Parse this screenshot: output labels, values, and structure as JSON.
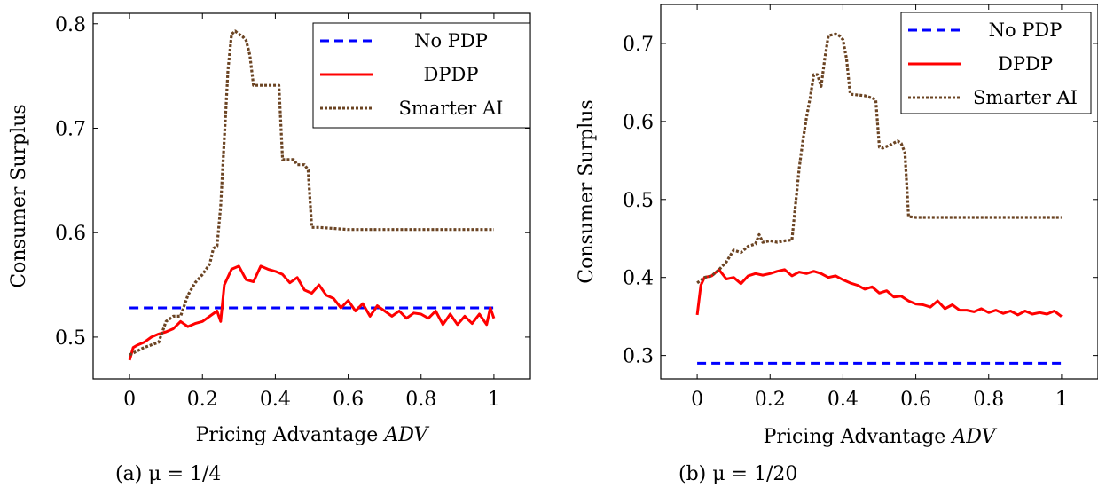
{
  "chart_data": [
    {
      "type": "line",
      "caption": "(a) μ = 1/4",
      "xlabel": "Pricing Advantage ADV",
      "ylabel": "Consumer Surplus",
      "xlim": [
        -0.1,
        1.1
      ],
      "ylim": [
        0.46,
        0.81
      ],
      "xticks": [
        0,
        0.2,
        0.4,
        0.6,
        0.8,
        1
      ],
      "xtick_labels": [
        "0",
        "0.2",
        "0.4",
        "0.6",
        "0.8",
        "1"
      ],
      "yticks": [
        0.5,
        0.6,
        0.7,
        0.8
      ],
      "ytick_labels": [
        "0.5",
        "0.6",
        "0.7",
        "0.8"
      ],
      "legend": "top-right",
      "series": [
        {
          "name": "No PDP",
          "color": "#0000ff",
          "style": "dashed",
          "x": [
            0,
            1
          ],
          "y": [
            0.528,
            0.528
          ]
        },
        {
          "name": "DPDP",
          "color": "#ff0000",
          "style": "solid",
          "x": [
            0,
            0.01,
            0.02,
            0.04,
            0.06,
            0.08,
            0.1,
            0.12,
            0.14,
            0.16,
            0.18,
            0.2,
            0.22,
            0.24,
            0.25,
            0.26,
            0.28,
            0.3,
            0.32,
            0.34,
            0.36,
            0.38,
            0.4,
            0.42,
            0.44,
            0.46,
            0.48,
            0.5,
            0.52,
            0.54,
            0.56,
            0.58,
            0.6,
            0.62,
            0.64,
            0.66,
            0.68,
            0.7,
            0.72,
            0.74,
            0.76,
            0.78,
            0.8,
            0.82,
            0.84,
            0.86,
            0.88,
            0.9,
            0.92,
            0.94,
            0.96,
            0.98,
            0.99,
            1.0
          ],
          "y": [
            0.478,
            0.49,
            0.492,
            0.495,
            0.5,
            0.503,
            0.505,
            0.508,
            0.515,
            0.51,
            0.513,
            0.515,
            0.52,
            0.525,
            0.515,
            0.55,
            0.565,
            0.568,
            0.555,
            0.553,
            0.568,
            0.565,
            0.563,
            0.56,
            0.552,
            0.557,
            0.545,
            0.542,
            0.55,
            0.54,
            0.537,
            0.528,
            0.535,
            0.525,
            0.532,
            0.52,
            0.53,
            0.525,
            0.52,
            0.525,
            0.518,
            0.523,
            0.522,
            0.518,
            0.525,
            0.512,
            0.522,
            0.512,
            0.52,
            0.513,
            0.522,
            0.512,
            0.528,
            0.518
          ]
        },
        {
          "name": "Smarter AI",
          "color": "#6b4423",
          "style": "dotted",
          "x": [
            0,
            0.04,
            0.08,
            0.1,
            0.12,
            0.14,
            0.16,
            0.18,
            0.2,
            0.22,
            0.23,
            0.24,
            0.25,
            0.26,
            0.27,
            0.28,
            0.29,
            0.3,
            0.31,
            0.32,
            0.33,
            0.34,
            0.38,
            0.39,
            0.4,
            0.41,
            0.42,
            0.44,
            0.45,
            0.46,
            0.48,
            0.49,
            0.5,
            0.52,
            0.6,
            0.62,
            1.0
          ],
          "y": [
            0.483,
            0.49,
            0.495,
            0.515,
            0.52,
            0.52,
            0.54,
            0.552,
            0.56,
            0.57,
            0.585,
            0.587,
            0.625,
            0.69,
            0.755,
            0.79,
            0.793,
            0.79,
            0.788,
            0.784,
            0.77,
            0.741,
            0.741,
            0.741,
            0.741,
            0.741,
            0.67,
            0.67,
            0.67,
            0.665,
            0.665,
            0.66,
            0.605,
            0.605,
            0.603,
            0.603,
            0.603
          ]
        }
      ]
    },
    {
      "type": "line",
      "caption": "(b) μ = 1/20",
      "xlabel": "Pricing Advantage ADV",
      "ylabel": "Consumer Surplus",
      "xlim": [
        -0.1,
        1.1
      ],
      "ylim": [
        0.27,
        0.75
      ],
      "xticks": [
        0,
        0.2,
        0.4,
        0.6,
        0.8,
        1
      ],
      "xtick_labels": [
        "0",
        "0.2",
        "0.4",
        "0.6",
        "0.8",
        "1"
      ],
      "yticks": [
        0.3,
        0.4,
        0.5,
        0.6,
        0.7
      ],
      "ytick_labels": [
        "0.3",
        "0.4",
        "0.5",
        "0.6",
        "0.7"
      ],
      "legend": "top-right",
      "series": [
        {
          "name": "No PDP",
          "color": "#0000ff",
          "style": "dashed",
          "x": [
            0,
            1
          ],
          "y": [
            0.29,
            0.29
          ]
        },
        {
          "name": "DPDP",
          "color": "#ff0000",
          "style": "solid",
          "x": [
            0,
            0.01,
            0.02,
            0.04,
            0.06,
            0.08,
            0.1,
            0.12,
            0.14,
            0.16,
            0.18,
            0.2,
            0.22,
            0.24,
            0.26,
            0.28,
            0.3,
            0.32,
            0.34,
            0.36,
            0.38,
            0.4,
            0.42,
            0.44,
            0.46,
            0.48,
            0.5,
            0.52,
            0.54,
            0.56,
            0.58,
            0.6,
            0.62,
            0.64,
            0.66,
            0.68,
            0.7,
            0.72,
            0.74,
            0.76,
            0.78,
            0.8,
            0.82,
            0.84,
            0.86,
            0.88,
            0.9,
            0.92,
            0.94,
            0.96,
            0.98,
            1.0
          ],
          "y": [
            0.352,
            0.39,
            0.4,
            0.402,
            0.41,
            0.398,
            0.4,
            0.392,
            0.402,
            0.405,
            0.403,
            0.405,
            0.408,
            0.41,
            0.402,
            0.407,
            0.405,
            0.408,
            0.405,
            0.4,
            0.402,
            0.397,
            0.393,
            0.39,
            0.385,
            0.388,
            0.38,
            0.383,
            0.375,
            0.376,
            0.37,
            0.366,
            0.365,
            0.362,
            0.37,
            0.36,
            0.365,
            0.358,
            0.358,
            0.356,
            0.36,
            0.355,
            0.358,
            0.354,
            0.357,
            0.352,
            0.357,
            0.353,
            0.355,
            0.353,
            0.357,
            0.35
          ]
        },
        {
          "name": "Smarter AI",
          "color": "#6b4423",
          "style": "dotted",
          "x": [
            0,
            0.02,
            0.04,
            0.06,
            0.08,
            0.1,
            0.12,
            0.14,
            0.16,
            0.17,
            0.18,
            0.2,
            0.22,
            0.24,
            0.26,
            0.28,
            0.29,
            0.3,
            0.31,
            0.32,
            0.33,
            0.34,
            0.35,
            0.36,
            0.38,
            0.39,
            0.4,
            0.41,
            0.42,
            0.46,
            0.48,
            0.49,
            0.5,
            0.51,
            0.52,
            0.53,
            0.55,
            0.56,
            0.57,
            0.58,
            0.6,
            1.0
          ],
          "y": [
            0.393,
            0.4,
            0.402,
            0.41,
            0.42,
            0.435,
            0.432,
            0.44,
            0.443,
            0.455,
            0.445,
            0.447,
            0.445,
            0.447,
            0.448,
            0.54,
            0.575,
            0.605,
            0.63,
            0.66,
            0.66,
            0.645,
            0.68,
            0.71,
            0.712,
            0.71,
            0.705,
            0.68,
            0.635,
            0.633,
            0.63,
            0.628,
            0.567,
            0.566,
            0.568,
            0.57,
            0.575,
            0.572,
            0.56,
            0.478,
            0.477,
            0.477
          ]
        }
      ]
    }
  ]
}
